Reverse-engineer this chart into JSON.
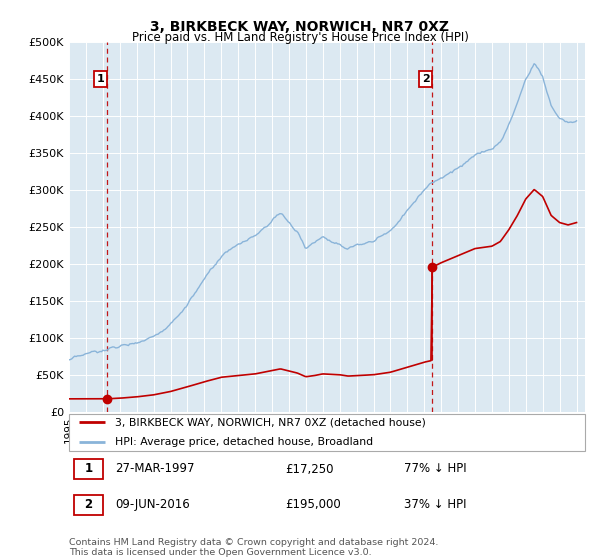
{
  "title": "3, BIRKBECK WAY, NORWICH, NR7 0XZ",
  "subtitle": "Price paid vs. HM Land Registry's House Price Index (HPI)",
  "ylim": [
    0,
    500000
  ],
  "yticks": [
    0,
    50000,
    100000,
    150000,
    200000,
    250000,
    300000,
    350000,
    400000,
    450000,
    500000
  ],
  "ytick_labels": [
    "£0",
    "£50K",
    "£100K",
    "£150K",
    "£200K",
    "£250K",
    "£300K",
    "£350K",
    "£400K",
    "£450K",
    "£500K"
  ],
  "xlim_start": 1995.0,
  "xlim_end": 2025.5,
  "plot_bg_color": "#dce9f2",
  "hpi_color": "#8ab4d9",
  "price_color": "#c00000",
  "sale1_x": 1997.22,
  "sale1_y": 17250,
  "sale2_x": 2016.44,
  "sale2_y": 195000,
  "legend_line1": "3, BIRKBECK WAY, NORWICH, NR7 0XZ (detached house)",
  "legend_line2": "HPI: Average price, detached house, Broadland",
  "table_row1_num": "1",
  "table_row1_date": "27-MAR-1997",
  "table_row1_price": "£17,250",
  "table_row1_hpi": "77% ↓ HPI",
  "table_row2_num": "2",
  "table_row2_date": "09-JUN-2016",
  "table_row2_price": "£195,000",
  "table_row2_hpi": "37% ↓ HPI",
  "footnote": "Contains HM Land Registry data © Crown copyright and database right 2024.\nThis data is licensed under the Open Government Licence v3.0."
}
